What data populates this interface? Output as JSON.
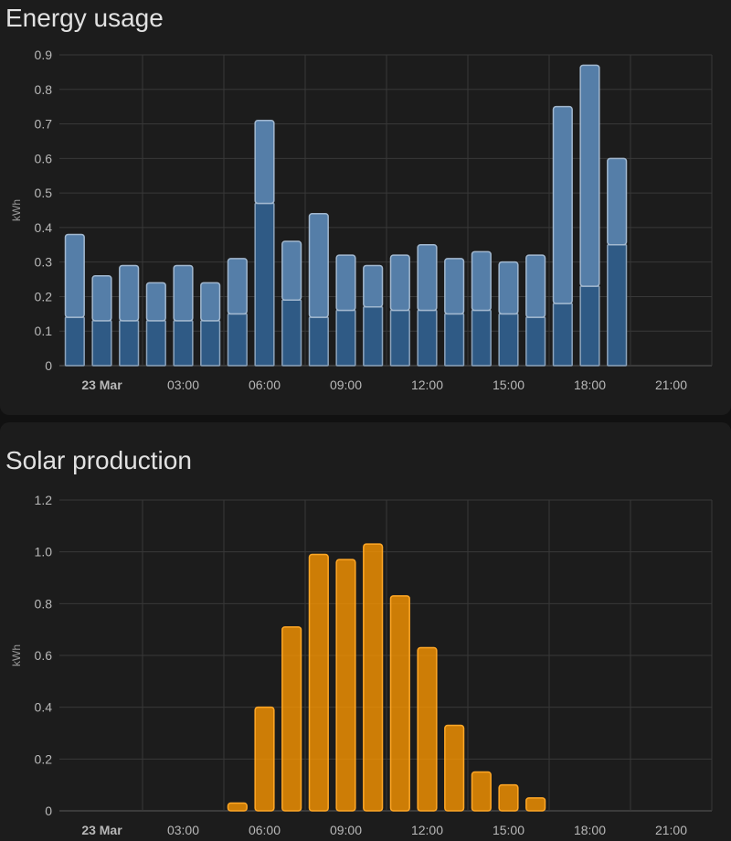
{
  "cards": {
    "energy": {
      "title": "Energy usage",
      "chart_data": {
        "type": "bar",
        "title": "Energy usage",
        "ylabel": "kWh",
        "xlabel": "",
        "x_tick_labels": [
          "23 Mar",
          "03:00",
          "06:00",
          "09:00",
          "12:00",
          "15:00",
          "18:00",
          "21:00"
        ],
        "y_ticks": [
          "0",
          "0.1",
          "0.2",
          "0.3",
          "0.4",
          "0.5",
          "0.6",
          "0.7",
          "0.8",
          "0.9"
        ],
        "ylim": [
          0,
          0.9
        ],
        "grid": true,
        "stacked": true,
        "categories": [
          "00:00",
          "01:00",
          "02:00",
          "03:00",
          "04:00",
          "05:00",
          "06:00",
          "07:00",
          "08:00",
          "09:00",
          "10:00",
          "11:00",
          "12:00",
          "13:00",
          "14:00",
          "15:00",
          "16:00",
          "17:00",
          "18:00",
          "19:00",
          "20:00"
        ],
        "series": [
          {
            "color": "#2f5a85",
            "values": [
              0.14,
              0.13,
              0.13,
              0.13,
              0.13,
              0.13,
              0.15,
              0.47,
              0.19,
              0.14,
              0.16,
              0.17,
              0.16,
              0.16,
              0.15,
              0.16,
              0.15,
              0.14,
              0.18,
              0.23,
              0.35
            ]
          },
          {
            "color": "#557ea8",
            "values": [
              0.24,
              0.13,
              0.16,
              0.11,
              0.16,
              0.11,
              0.16,
              0.24,
              0.17,
              0.3,
              0.16,
              0.12,
              0.16,
              0.19,
              0.16,
              0.17,
              0.15,
              0.18,
              0.57,
              0.64,
              0.25
            ]
          }
        ]
      }
    },
    "solar": {
      "title": "Solar production",
      "chart_data": {
        "type": "bar",
        "title": "Solar production",
        "ylabel": "kWh",
        "xlabel": "",
        "x_tick_labels": [
          "23 Mar",
          "03:00",
          "06:00",
          "09:00",
          "12:00",
          "15:00",
          "18:00",
          "21:00"
        ],
        "y_ticks": [
          "0",
          "0.2",
          "0.4",
          "0.6",
          "0.8",
          "1.0",
          "1.2"
        ],
        "ylim": [
          0,
          1.2
        ],
        "grid": true,
        "stacked": false,
        "categories": [
          "06:00",
          "07:00",
          "08:00",
          "09:00",
          "10:00",
          "11:00",
          "12:00",
          "13:00",
          "14:00",
          "15:00",
          "16:00",
          "17:00"
        ],
        "series": [
          {
            "color": "#ff9800",
            "values": [
              0.03,
              0.4,
              0.71,
              0.99,
              0.97,
              1.03,
              0.83,
              0.63,
              0.33,
              0.15,
              0.1,
              0.05
            ]
          }
        ]
      }
    }
  }
}
